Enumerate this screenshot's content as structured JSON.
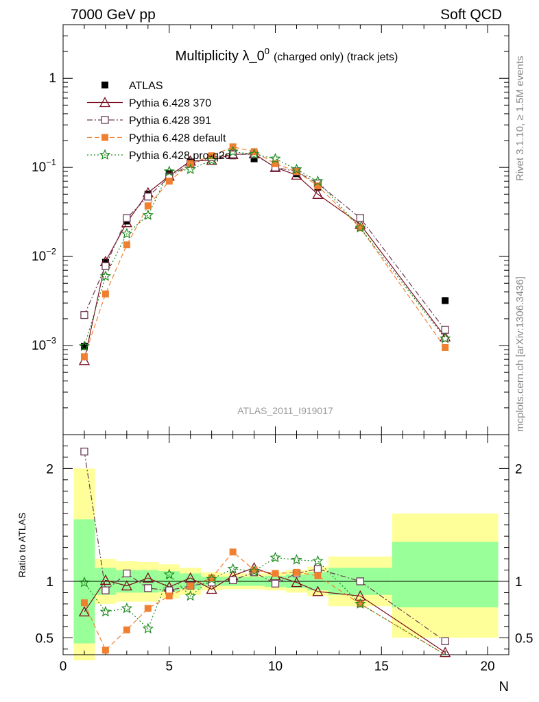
{
  "header": {
    "left_label": "7000 GeV pp",
    "right_label": "Soft QCD"
  },
  "side_labels": {
    "top": "Rivet 3.1.10, ≥ 1.5M events",
    "bottom": "mcplots.cern.ch [arXiv:1306.3436]"
  },
  "chart_data": [
    {
      "type": "scatter",
      "panel": "main",
      "title_main": "Multiplicity λ_0",
      "title_sup": "0",
      "title_suffix": "(charged only) (track jets)",
      "watermark": "ATLAS_2011_I919017",
      "yscale": "log",
      "ylim": [
        0.0001,
        4
      ],
      "xlim": [
        0,
        21
      ],
      "y_tick_labels": [
        {
          "value": 0.001,
          "base": "10",
          "exp": "−3"
        },
        {
          "value": 0.01,
          "base": "10",
          "exp": "−2"
        },
        {
          "value": 0.1,
          "base": "10",
          "exp": "−1"
        },
        {
          "value": 1,
          "base": "1",
          "exp": ""
        }
      ],
      "legend_position": "top-left",
      "series": [
        {
          "name": "ATLAS",
          "color": "#000000",
          "marker": "filled-square",
          "line": "none",
          "x": [
            1,
            2,
            3,
            4,
            5,
            6,
            7,
            8,
            9,
            10,
            11,
            12,
            14,
            18
          ],
          "y": [
            0.00098,
            0.0086,
            0.025,
            0.05,
            0.085,
            0.115,
            0.13,
            0.135,
            0.125,
            0.105,
            0.085,
            0.06,
            0.027,
            0.0032
          ]
        },
        {
          "name": "Pythia 6.428 370",
          "color": "#7a0c1e",
          "marker": "open-triangle",
          "line": "solid",
          "x": [
            1,
            2,
            3,
            4,
            5,
            6,
            7,
            8,
            9,
            10,
            11,
            12,
            14,
            18
          ],
          "y": [
            0.00068,
            0.0088,
            0.024,
            0.052,
            0.08,
            0.118,
            0.12,
            0.14,
            0.142,
            0.1,
            0.082,
            0.05,
            0.023,
            0.00125
          ]
        },
        {
          "name": "Pythia 6.428 391",
          "color": "#6b3a55",
          "marker": "open-square",
          "line": "dashdot",
          "x": [
            1,
            2,
            3,
            4,
            5,
            6,
            7,
            8,
            9,
            10,
            11,
            12,
            14,
            18
          ],
          "y": [
            0.0022,
            0.0078,
            0.027,
            0.047,
            0.078,
            0.11,
            0.13,
            0.14,
            0.14,
            0.1,
            0.09,
            0.066,
            0.027,
            0.0015
          ]
        },
        {
          "name": "Pythia 6.428 default",
          "color": "#f08030",
          "marker": "filled-square",
          "line": "dashed",
          "x": [
            1,
            2,
            3,
            4,
            5,
            6,
            7,
            8,
            9,
            10,
            11,
            12,
            14,
            18
          ],
          "y": [
            0.00075,
            0.0038,
            0.0135,
            0.037,
            0.07,
            0.11,
            0.135,
            0.17,
            0.15,
            0.11,
            0.09,
            0.062,
            0.021,
            0.00095
          ]
        },
        {
          "name": "Pythia 6.428 pro-q2o",
          "color": "#1e8a1e",
          "marker": "star",
          "line": "dotted",
          "x": [
            1,
            2,
            3,
            4,
            5,
            6,
            7,
            8,
            9,
            10,
            11,
            12,
            14,
            18
          ],
          "y": [
            0.00098,
            0.006,
            0.018,
            0.029,
            0.09,
            0.095,
            0.12,
            0.15,
            0.14,
            0.125,
            0.095,
            0.07,
            0.021,
            0.0012
          ]
        }
      ]
    },
    {
      "type": "scatter",
      "panel": "ratio",
      "ylabel": "Ratio to ATLAS",
      "xlabel": "N",
      "ylim": [
        0.35,
        2.3
      ],
      "xlim": [
        0,
        21
      ],
      "x_ticks": [
        0,
        5,
        10,
        15,
        20
      ],
      "y_ticks": [
        0.5,
        1,
        2
      ],
      "bands": [
        {
          "x0": 0.5,
          "x1": 1.5,
          "g_lo": 0.45,
          "g_hi": 1.55,
          "y_lo": 0.3,
          "y_hi": 2.0
        },
        {
          "x0": 1.5,
          "x1": 2.5,
          "g_lo": 0.88,
          "g_hi": 1.12,
          "y_lo": 0.8,
          "y_hi": 1.2
        },
        {
          "x0": 2.5,
          "x1": 3.5,
          "g_lo": 0.9,
          "g_hi": 1.1,
          "y_lo": 0.82,
          "y_hi": 1.18
        },
        {
          "x0": 3.5,
          "x1": 4.5,
          "g_lo": 0.9,
          "g_hi": 1.1,
          "y_lo": 0.82,
          "y_hi": 1.17
        },
        {
          "x0": 4.5,
          "x1": 5.5,
          "g_lo": 0.91,
          "g_hi": 1.09,
          "y_lo": 0.85,
          "y_hi": 1.15
        },
        {
          "x0": 5.5,
          "x1": 6.5,
          "g_lo": 0.93,
          "g_hi": 1.07,
          "y_lo": 0.88,
          "y_hi": 1.12
        },
        {
          "x0": 6.5,
          "x1": 7.5,
          "g_lo": 0.96,
          "g_hi": 1.04,
          "y_lo": 0.92,
          "y_hi": 1.08
        },
        {
          "x0": 7.5,
          "x1": 8.5,
          "g_lo": 0.96,
          "g_hi": 1.04,
          "y_lo": 0.93,
          "y_hi": 1.07
        },
        {
          "x0": 8.5,
          "x1": 9.5,
          "g_lo": 0.96,
          "g_hi": 1.04,
          "y_lo": 0.93,
          "y_hi": 1.07
        },
        {
          "x0": 9.5,
          "x1": 10.5,
          "g_lo": 0.95,
          "g_hi": 1.05,
          "y_lo": 0.92,
          "y_hi": 1.08
        },
        {
          "x0": 10.5,
          "x1": 11.5,
          "g_lo": 0.94,
          "g_hi": 1.06,
          "y_lo": 0.9,
          "y_hi": 1.1
        },
        {
          "x0": 11.5,
          "x1": 12.5,
          "g_lo": 0.92,
          "g_hi": 1.08,
          "y_lo": 0.87,
          "y_hi": 1.13
        },
        {
          "x0": 12.5,
          "x1": 15.5,
          "g_lo": 0.88,
          "g_hi": 1.12,
          "y_lo": 0.78,
          "y_hi": 1.22
        },
        {
          "x0": 15.5,
          "x1": 20.5,
          "g_lo": 0.77,
          "g_hi": 1.35,
          "y_lo": 0.5,
          "y_hi": 1.6
        }
      ],
      "series": [
        {
          "name": "Pythia 6.428 370",
          "color": "#7a0c1e",
          "marker": "open-triangle",
          "line": "solid",
          "x": [
            1,
            2,
            3,
            4,
            5,
            6,
            7,
            8,
            9,
            10,
            11,
            12,
            14,
            18
          ],
          "y": [
            0.73,
            1.01,
            0.96,
            1.03,
            0.95,
            1.03,
            0.93,
            1.05,
            1.12,
            1.05,
            0.99,
            0.91,
            0.87,
            0.37
          ]
        },
        {
          "name": "Pythia 6.428 391",
          "color": "#6b3a55",
          "marker": "open-square",
          "line": "dashdot",
          "x": [
            1,
            2,
            3,
            4,
            5,
            6,
            7,
            8,
            9,
            10,
            11,
            12,
            14,
            18
          ],
          "y": [
            2.15,
            0.92,
            1.07,
            0.94,
            0.92,
            0.96,
            0.99,
            1.01,
            1.08,
            0.98,
            1.07,
            1.11,
            1.0,
            0.47
          ]
        },
        {
          "name": "Pythia 6.428 default",
          "color": "#f08030",
          "marker": "filled-square",
          "line": "dashed",
          "x": [
            1,
            2,
            3,
            4,
            5,
            6,
            7,
            8,
            9,
            10,
            11,
            12,
            14,
            18
          ],
          "y": [
            0.81,
            0.39,
            0.57,
            0.76,
            0.87,
            0.96,
            1.03,
            1.26,
            1.1,
            1.07,
            1.08,
            1.05,
            0.8,
            0.3
          ]
        },
        {
          "name": "Pythia 6.428 pro-q2o",
          "color": "#1e8a1e",
          "marker": "star",
          "line": "dotted",
          "x": [
            1,
            2,
            3,
            4,
            5,
            6,
            7,
            8,
            9,
            10,
            11,
            12,
            14,
            18
          ],
          "y": [
            0.99,
            0.73,
            0.76,
            0.58,
            1.06,
            0.87,
            1.02,
            1.11,
            1.09,
            1.21,
            1.19,
            1.18,
            0.8,
            0.34
          ]
        }
      ]
    }
  ]
}
